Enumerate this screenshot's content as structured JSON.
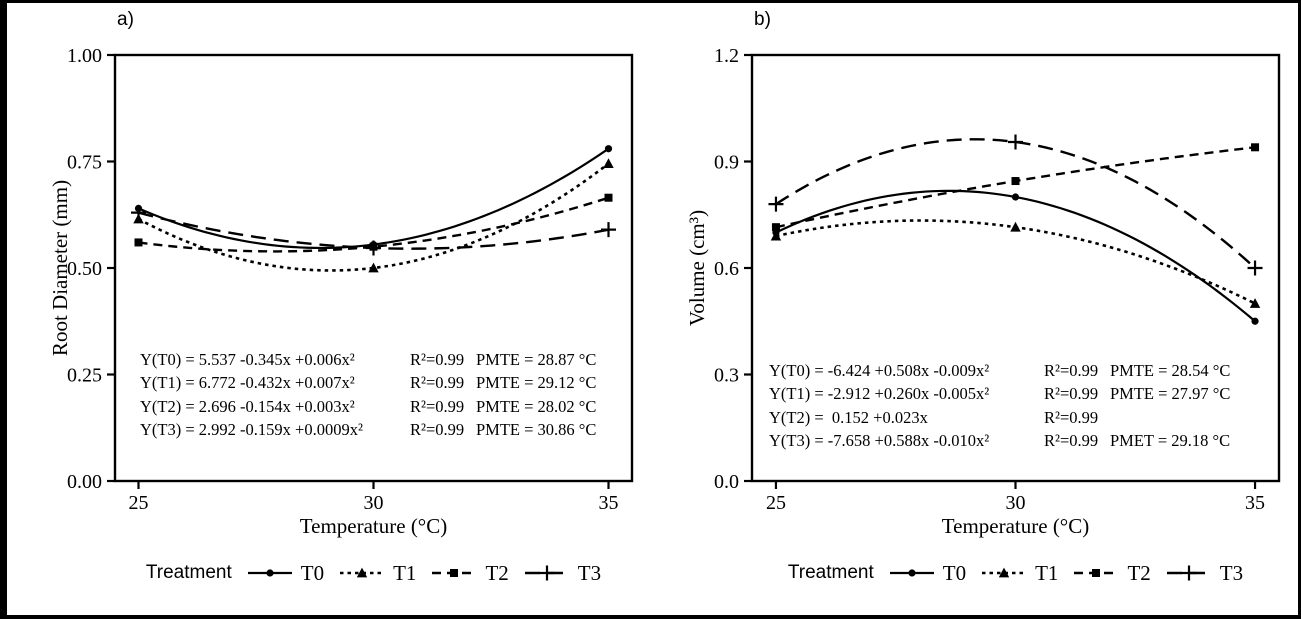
{
  "chart_data": [
    {
      "type": "line",
      "panel_label": "a)",
      "title": "",
      "xlabel": "Temperature (°C)",
      "ylabel": "Root Diameter (mm)",
      "xlim": [
        24.5,
        35.5
      ],
      "ylim": [
        0,
        1.0
      ],
      "x": [
        25,
        30,
        35
      ],
      "xtick_labels": [
        "25",
        "30",
        "35"
      ],
      "ytick_values": [
        0,
        0.25,
        0.5,
        0.75,
        1.0
      ],
      "ytick_labels": [
        "0.00",
        "0.25",
        "0.50",
        "0.75",
        "1.00"
      ],
      "grid": false,
      "series": [
        {
          "name": "T0",
          "marker": "circle",
          "line": "solid",
          "values": [
            0.64,
            0.555,
            0.78
          ]
        },
        {
          "name": "T1",
          "marker": "triangle",
          "line": "dotted",
          "values": [
            0.615,
            0.5,
            0.745
          ]
        },
        {
          "name": "T2",
          "marker": "square",
          "line": "dashed",
          "values": [
            0.56,
            0.55,
            0.665
          ]
        },
        {
          "name": "T3",
          "marker": "plus",
          "line": "longdash",
          "values": [
            0.63,
            0.547,
            0.59
          ]
        }
      ],
      "annotations": [
        {
          "eq": "Y(T0) = 5.537 -0.345x +0.006x²",
          "r2": "R²=0.99",
          "pmte": "PMTE = 28.87 °C"
        },
        {
          "eq": "Y(T1) = 6.772 -0.432x +0.007x²",
          "r2": "R²=0.99",
          "pmte": "PMTE = 29.12 °C"
        },
        {
          "eq": "Y(T2) = 2.696 -0.154x +0.003x²",
          "r2": "R²=0.99",
          "pmte": "PMTE = 28.02 °C"
        },
        {
          "eq": "Y(T3) = 2.992 -0.159x +0.0009x²",
          "r2": "R²=0.99",
          "pmte": "PMTE = 30.86 °C"
        }
      ]
    },
    {
      "type": "line",
      "panel_label": "b)",
      "title": "",
      "xlabel": "Temperature (°C)",
      "ylabel": "Volume (cm³)",
      "xlim": [
        24.5,
        35.5
      ],
      "ylim": [
        0,
        1.2
      ],
      "x": [
        25,
        30,
        35
      ],
      "xtick_labels": [
        "25",
        "30",
        "35"
      ],
      "ytick_values": [
        0,
        0.3,
        0.6,
        0.9,
        1.2
      ],
      "ytick_labels": [
        "0.0",
        "0.3",
        "0.6",
        "0.9",
        "1.2"
      ],
      "grid": false,
      "series": [
        {
          "name": "T0",
          "marker": "circle",
          "line": "solid",
          "values": [
            0.7,
            0.8,
            0.45
          ]
        },
        {
          "name": "T1",
          "marker": "triangle",
          "line": "dotted",
          "values": [
            0.69,
            0.715,
            0.5
          ]
        },
        {
          "name": "T2",
          "marker": "square",
          "line": "dashed",
          "values": [
            0.715,
            0.845,
            0.94
          ]
        },
        {
          "name": "T3",
          "marker": "plus",
          "line": "longdash",
          "values": [
            0.78,
            0.955,
            0.6
          ]
        }
      ],
      "annotations": [
        {
          "eq": "Y(T0) = -6.424 +0.508x -0.009x²",
          "r2": "R²=0.99",
          "pmte": "PMTE = 28.54 °C"
        },
        {
          "eq": "Y(T1) = -2.912 +0.260x -0.005x²",
          "r2": "R²=0.99",
          "pmte": "PMTE = 27.97 °C"
        },
        {
          "eq": "Y(T2) =  0.152 +0.023x",
          "r2": "R²=0.99",
          "pmte": ""
        },
        {
          "eq": "Y(T3) = -7.658 +0.588x -0.010x²",
          "r2": "R²=0.99",
          "pmte": "PMET = 29.18 °C"
        }
      ]
    }
  ],
  "legend": {
    "title": "Treatment",
    "entries": [
      {
        "label": "T0",
        "marker": "circle",
        "line": "solid"
      },
      {
        "label": "T1",
        "marker": "triangle",
        "line": "dotted"
      },
      {
        "label": "T2",
        "marker": "square",
        "line": "dashed"
      },
      {
        "label": "T3",
        "marker": "plus",
        "line": "longdash"
      }
    ]
  },
  "colors": {
    "ink": "#000000",
    "background": "#ffffff"
  }
}
